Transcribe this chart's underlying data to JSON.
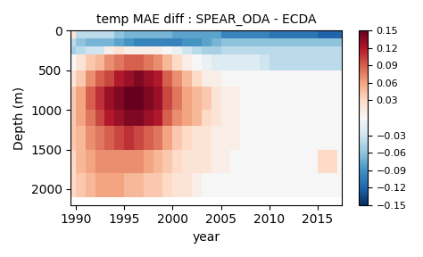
{
  "title": "temp MAE diff : SPEAR_ODA - ECDA",
  "xlabel": "year",
  "ylabel": "Depth (m)",
  "vmin": -0.15,
  "vmax": 0.15,
  "colorbar_ticks": [
    0.15,
    0.12,
    0.09,
    0.06,
    0.03,
    -0.03,
    -0.06,
    -0.09,
    -0.12,
    -0.15
  ],
  "xticks": [
    1990,
    1995,
    2000,
    2005,
    2010,
    2015
  ],
  "yticks": [
    0,
    500,
    1000,
    1500,
    2000
  ],
  "xlim": [
    1989.5,
    2017.5
  ],
  "ylim_bottom": 0,
  "ylim_top": 2200,
  "year_edges": [
    1989,
    1990,
    1991,
    1992,
    1993,
    1994,
    1995,
    1996,
    1997,
    1998,
    1999,
    2000,
    2001,
    2002,
    2003,
    2004,
    2005,
    2006,
    2007,
    2008,
    2009,
    2010,
    2011,
    2012,
    2013,
    2014,
    2015,
    2016,
    2017,
    2018
  ],
  "depth_edges": [
    0,
    100,
    200,
    300,
    500,
    700,
    1000,
    1200,
    1500,
    1800,
    2100
  ],
  "data": [
    [
      0.02,
      -0.04,
      -0.04,
      -0.04,
      -0.04,
      -0.06,
      -0.07,
      -0.07,
      -0.07,
      -0.07,
      -0.07,
      -0.08,
      -0.08,
      -0.08,
      -0.08,
      -0.08,
      -0.1,
      -0.1,
      -0.1,
      -0.1,
      -0.1,
      -0.11,
      -0.11,
      -0.11,
      -0.11,
      -0.11,
      -0.12,
      -0.12,
      -0.12
    ],
    [
      -0.04,
      -0.06,
      -0.07,
      -0.07,
      -0.07,
      -0.08,
      -0.09,
      -0.1,
      -0.1,
      -0.1,
      -0.1,
      -0.1,
      -0.09,
      -0.09,
      -0.08,
      -0.07,
      -0.06,
      -0.06,
      -0.06,
      -0.06,
      -0.06,
      -0.06,
      -0.06,
      -0.06,
      -0.06,
      -0.06,
      -0.06,
      -0.06,
      -0.06
    ],
    [
      -0.05,
      -0.04,
      -0.03,
      -0.03,
      0.01,
      0.02,
      0.01,
      0.01,
      0.01,
      0.01,
      0.0,
      -0.01,
      -0.03,
      -0.04,
      -0.05,
      -0.05,
      -0.04,
      -0.04,
      -0.04,
      -0.04,
      -0.04,
      -0.04,
      -0.04,
      -0.04,
      -0.04,
      -0.04,
      -0.04,
      -0.04,
      -0.04
    ],
    [
      0.0,
      0.02,
      0.04,
      0.05,
      0.07,
      0.08,
      0.09,
      0.09,
      0.08,
      0.07,
      0.05,
      0.03,
      0.01,
      0.0,
      -0.01,
      -0.02,
      -0.02,
      -0.02,
      -0.02,
      -0.02,
      -0.03,
      -0.04,
      -0.04,
      -0.04,
      -0.04,
      -0.04,
      -0.04,
      -0.04,
      -0.04
    ],
    [
      0.02,
      0.04,
      0.07,
      0.09,
      0.1,
      0.12,
      0.13,
      0.14,
      0.13,
      0.12,
      0.09,
      0.07,
      0.05,
      0.03,
      0.01,
      0.01,
      0.0,
      0.0,
      0.0,
      0.0,
      0.0,
      0.0,
      0.0,
      0.0,
      0.0,
      0.0,
      0.0,
      0.0,
      0.0
    ],
    [
      0.04,
      0.06,
      0.09,
      0.11,
      0.13,
      0.14,
      0.15,
      0.15,
      0.14,
      0.13,
      0.1,
      0.08,
      0.06,
      0.05,
      0.04,
      0.02,
      0.01,
      0.01,
      0.0,
      0.0,
      0.0,
      0.0,
      0.0,
      0.0,
      0.0,
      0.0,
      0.0,
      0.0,
      0.0
    ],
    [
      0.04,
      0.06,
      0.08,
      0.1,
      0.12,
      0.13,
      0.14,
      0.14,
      0.13,
      0.12,
      0.09,
      0.07,
      0.06,
      0.05,
      0.03,
      0.02,
      0.01,
      0.01,
      0.0,
      0.0,
      0.0,
      0.0,
      0.0,
      0.0,
      0.0,
      0.0,
      0.0,
      0.0,
      0.0
    ],
    [
      0.04,
      0.05,
      0.07,
      0.08,
      0.09,
      0.1,
      0.11,
      0.1,
      0.09,
      0.08,
      0.06,
      0.04,
      0.03,
      0.02,
      0.02,
      0.01,
      0.01,
      0.01,
      0.0,
      0.0,
      0.0,
      0.0,
      0.0,
      0.0,
      0.0,
      0.0,
      0.0,
      0.0,
      0.0
    ],
    [
      0.03,
      0.05,
      0.06,
      0.07,
      0.07,
      0.07,
      0.07,
      0.07,
      0.06,
      0.05,
      0.04,
      0.03,
      0.02,
      0.02,
      0.02,
      0.01,
      0.01,
      0.0,
      0.0,
      0.0,
      0.0,
      0.0,
      0.0,
      0.0,
      0.0,
      0.0,
      0.03,
      0.03,
      0.0
    ],
    [
      0.03,
      0.04,
      0.05,
      0.06,
      0.06,
      0.06,
      0.05,
      0.05,
      0.04,
      0.04,
      0.03,
      0.02,
      0.02,
      0.01,
      0.0,
      0.0,
      0.0,
      0.0,
      0.0,
      0.0,
      0.0,
      0.0,
      0.0,
      0.0,
      0.0,
      0.0,
      0.0,
      0.0,
      0.0
    ]
  ]
}
